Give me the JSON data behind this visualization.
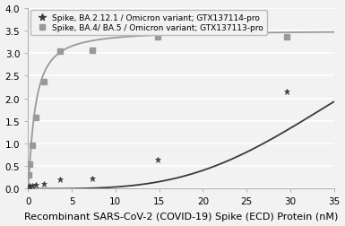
{
  "series1_label": "Spike, BA.2.12.1 / Omicron variant; GTX137114-pro",
  "series2_label": "Spike, BA.4/ BA.5 / Omicron variant; GTX137113-pro",
  "series1_x": [
    0.11,
    0.23,
    0.46,
    0.93,
    1.85,
    3.7,
    7.4,
    14.8,
    29.6
  ],
  "series1_y": [
    0.05,
    0.07,
    0.07,
    0.08,
    0.1,
    0.2,
    0.23,
    0.65,
    2.15
  ],
  "series2_x": [
    0.11,
    0.23,
    0.46,
    0.93,
    1.85,
    3.7,
    7.4,
    14.8,
    29.6
  ],
  "series2_y": [
    0.3,
    0.55,
    0.97,
    1.57,
    2.37,
    3.05,
    3.07,
    3.35,
    3.35
  ],
  "series1_color": "#3a3a3a",
  "series2_color": "#999999",
  "series1_marker": "*",
  "series2_marker": "s",
  "xlabel": "Recombinant SARS-CoV-2 (COVID-19) Spike (ECD) Protein (nM)",
  "xlim": [
    0,
    35
  ],
  "ylim": [
    0,
    4
  ],
  "yticks": [
    0,
    0.5,
    1.0,
    1.5,
    2.0,
    2.5,
    3.0,
    3.5,
    4.0
  ],
  "xticks": [
    0,
    5,
    10,
    15,
    20,
    25,
    30,
    35
  ],
  "background_color": "#f2f2f2",
  "plot_bg_color": "#f2f2f2",
  "grid_color": "#ffffff",
  "legend_fontsize": 6.5,
  "axis_fontsize": 8,
  "tick_fontsize": 7.5
}
